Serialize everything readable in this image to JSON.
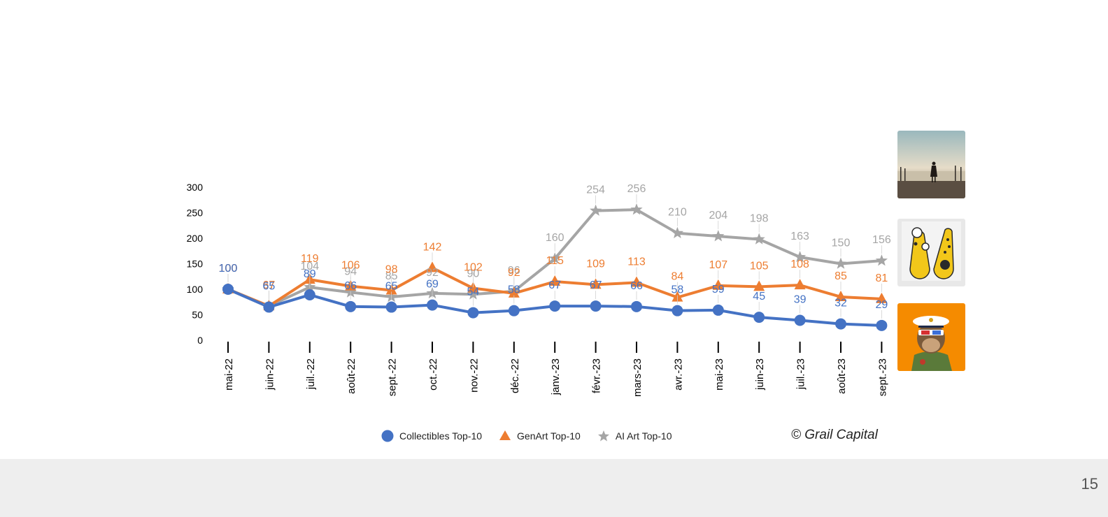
{
  "chart_data": {
    "type": "line",
    "categories": [
      "mai-22",
      "juin-22",
      "juil.-22",
      "août-22",
      "sept.-22",
      "oct.-22",
      "nov.-22",
      "déc.-22",
      "janv.-23",
      "févr.-23",
      "mars-23",
      "avr.-23",
      "mai-23",
      "juin-23",
      "juil.-23",
      "août-23",
      "sept.-23"
    ],
    "y_ticks": [
      0,
      50,
      100,
      150,
      200,
      250,
      300
    ],
    "ylim": [
      0,
      300
    ],
    "grid": false,
    "legend_position": "bottom",
    "series": [
      {
        "name": "Collectibles Top-10",
        "color": "#4472c4",
        "marker": "circle",
        "values": [
          100,
          65,
          89,
          66,
          65,
          69,
          54,
          58,
          67,
          67,
          66,
          58,
          59,
          45,
          39,
          32,
          29
        ]
      },
      {
        "name": "GenArt Top-10",
        "color": "#ed7d31",
        "marker": "triangle",
        "values": [
          100,
          67,
          119,
          106,
          98,
          142,
          102,
          92,
          115,
          109,
          113,
          84,
          107,
          105,
          108,
          85,
          81
        ]
      },
      {
        "name": "AI Art Top-10",
        "color": "#a5a5a5",
        "marker": "star",
        "values": [
          100,
          67,
          104,
          94,
          85,
          92,
          90,
          96,
          160,
          254,
          256,
          210,
          204,
          198,
          163,
          150,
          156
        ]
      }
    ]
  },
  "credit": "© Grail Capital",
  "page_number": "15",
  "thumbnails": [
    {
      "icon": "silhouette-beach-photo-icon"
    },
    {
      "icon": "yellow-dots-genart-icon"
    },
    {
      "icon": "ape-captain-nft-icon"
    }
  ]
}
